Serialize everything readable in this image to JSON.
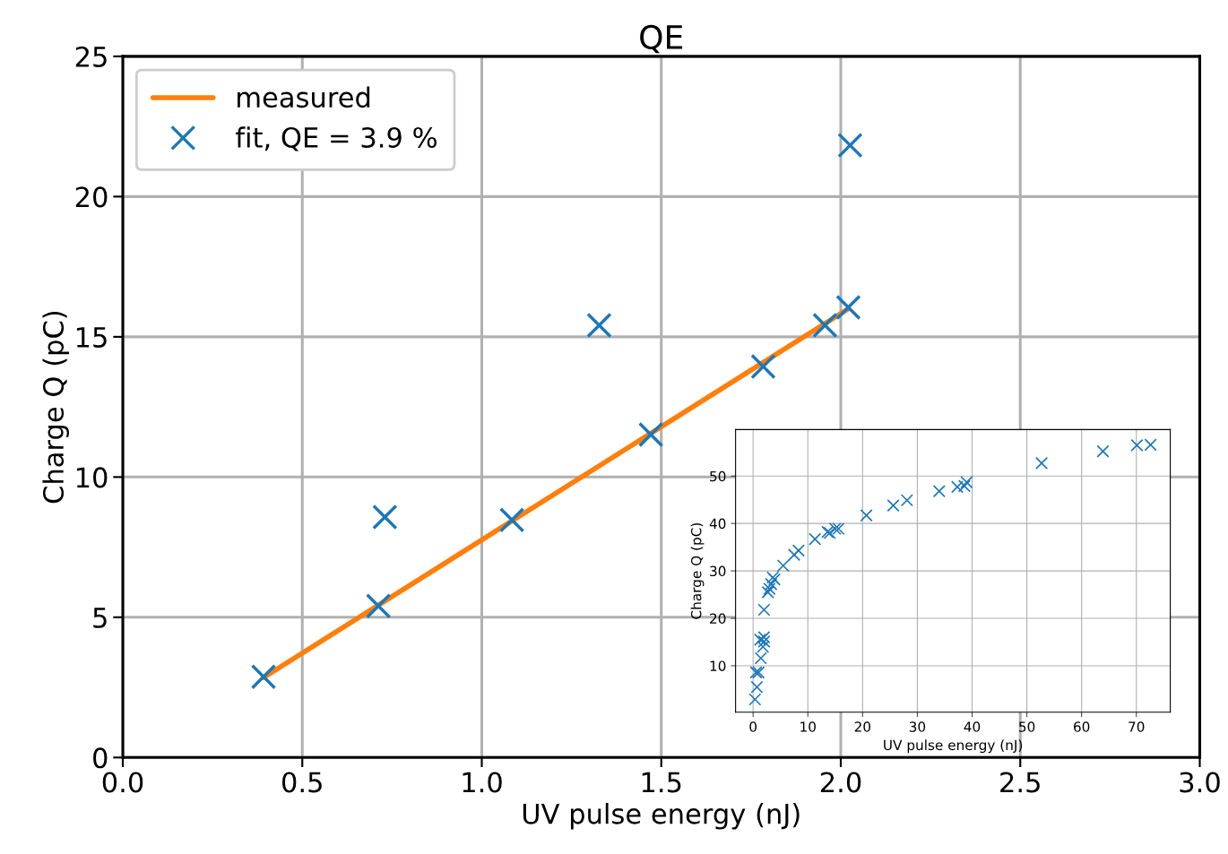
{
  "chart_data": [
    {
      "type": "scatter",
      "title": "QE",
      "xlabel": "UV pulse energy (nJ)",
      "ylabel": "Charge Q (pC)",
      "xlim": [
        0,
        3
      ],
      "ylim": [
        0,
        25
      ],
      "xticks": [
        {
          "value": 0,
          "label": "0.0"
        },
        {
          "value": 0.5,
          "label": "0.5"
        },
        {
          "value": 1,
          "label": "1.0"
        },
        {
          "value": 1.5,
          "label": "1.5"
        },
        {
          "value": 2,
          "label": "2.0"
        },
        {
          "value": 2.5,
          "label": "2.5"
        },
        {
          "value": 3,
          "label": "3.0"
        }
      ],
      "yticks": [
        0,
        5,
        10,
        15,
        20,
        25
      ],
      "grid": true,
      "legend": "top left",
      "marker": "cross",
      "series": [
        {
          "name": "measured",
          "type": "line",
          "color": "#ff7f0e",
          "x": [
            0.392,
            2.021
          ],
          "values": [
            2.85,
            16.0
          ]
        },
        {
          "name": "fit, QE = 3.9 %",
          "type": "scatter",
          "color": "#1f77b4",
          "x": [
            0.392,
            0.712,
            0.73,
            1.084,
            1.327,
            1.471,
            1.784,
            1.956,
            2.021,
            2.026
          ],
          "values": [
            2.88,
            5.4,
            8.57,
            8.47,
            15.41,
            11.51,
            13.94,
            15.41,
            16.05,
            21.83
          ]
        }
      ]
    },
    {
      "type": "scatter",
      "xlabel": "UV pulse energy (nJ)",
      "ylabel": "Charge Q (pC)",
      "xlim": [
        -3.2,
        76.2
      ],
      "ylim": [
        0.2,
        59.8
      ],
      "xticks": [
        0,
        10,
        20,
        30,
        40,
        50,
        60,
        70
      ],
      "yticks": [
        10,
        20,
        30,
        40,
        50
      ],
      "grid": true,
      "marker": "cross",
      "series": [
        {
          "color": "#1f77b4",
          "x": [
            0.35,
            0.7,
            0.53,
            1.0,
            1.4,
            1.8,
            2.0,
            1.3,
            2.0,
            2.0,
            2.7,
            3.0,
            3.3,
            3.6,
            3.9,
            5.5,
            7.5,
            8.3,
            11.3,
            13.6,
            14.0,
            15.0,
            15.6,
            20.7,
            25.6,
            28.1,
            34.0,
            37.3,
            38.6,
            39.0,
            52.7,
            63.9,
            70.1,
            72.6
          ],
          "values": [
            2.9,
            5.5,
            8.6,
            8.6,
            11.6,
            14.0,
            15.1,
            15.5,
            16.0,
            21.8,
            25.5,
            26.2,
            27.2,
            28.6,
            28.2,
            31.1,
            33.4,
            34.3,
            36.7,
            38.2,
            38.0,
            38.9,
            38.9,
            41.7,
            43.8,
            44.9,
            46.8,
            47.7,
            47.9,
            48.7,
            52.7,
            55.2,
            56.5,
            56.6
          ]
        }
      ]
    }
  ]
}
